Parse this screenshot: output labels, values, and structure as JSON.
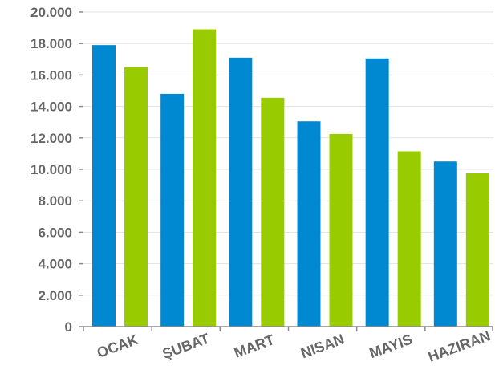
{
  "chart_data": {
    "type": "bar",
    "title": "",
    "xlabel": "",
    "ylabel": "",
    "categories": [
      "OCAK",
      "ŞUBAT",
      "MART",
      "NISAN",
      "MAYIS",
      "HAZIRAN"
    ],
    "series": [
      {
        "color": "#0088d1",
        "values": [
          17900,
          14800,
          17100,
          13050,
          17050,
          10500
        ]
      },
      {
        "color": "#99cc00",
        "values": [
          16500,
          18900,
          14550,
          12250,
          11150,
          9750
        ]
      }
    ],
    "ylim": [
      0,
      20000
    ],
    "yticks": [
      "0",
      "2.000",
      "4.000",
      "6.000",
      "8.000",
      "10.000",
      "12.000",
      "14.000",
      "16.000",
      "18.000",
      "20.000"
    ],
    "grid": true,
    "legend": "none",
    "x_label_rotation_deg": -20
  }
}
